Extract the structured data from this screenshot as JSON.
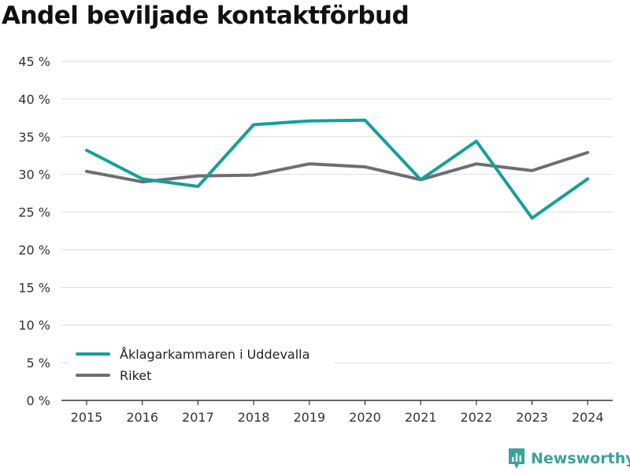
{
  "title": "Andel beviljade kontaktförbud",
  "brand": {
    "name": "Newsworthy",
    "icon": "newsworthy-logo-icon",
    "color": "#3aa39a"
  },
  "chart_data": {
    "type": "line",
    "x": [
      "2015",
      "2016",
      "2017",
      "2018",
      "2019",
      "2020",
      "2021",
      "2022",
      "2023",
      "2024"
    ],
    "series": [
      {
        "name": "Åklagarkammaren i Uddevalla",
        "color": "#14a098",
        "values": [
          33.2,
          29.4,
          28.4,
          36.6,
          37.1,
          37.2,
          29.3,
          34.4,
          24.2,
          29.4
        ]
      },
      {
        "name": "Riket",
        "color": "#6e6d75",
        "values": [
          30.4,
          29.0,
          29.8,
          29.9,
          31.4,
          31.0,
          29.3,
          31.4,
          30.5,
          32.9
        ]
      }
    ],
    "y_ticks": [
      0,
      5,
      10,
      15,
      20,
      25,
      30,
      35,
      40,
      45
    ],
    "y_tick_labels": [
      "0 %",
      "5 %",
      "10 %",
      "15 %",
      "20 %",
      "25 %",
      "30 %",
      "35 %",
      "40 %",
      "45 %"
    ],
    "ylim": [
      0,
      45
    ],
    "xlabel": "",
    "ylabel": "",
    "grid": true,
    "legend": "bottom-left"
  }
}
